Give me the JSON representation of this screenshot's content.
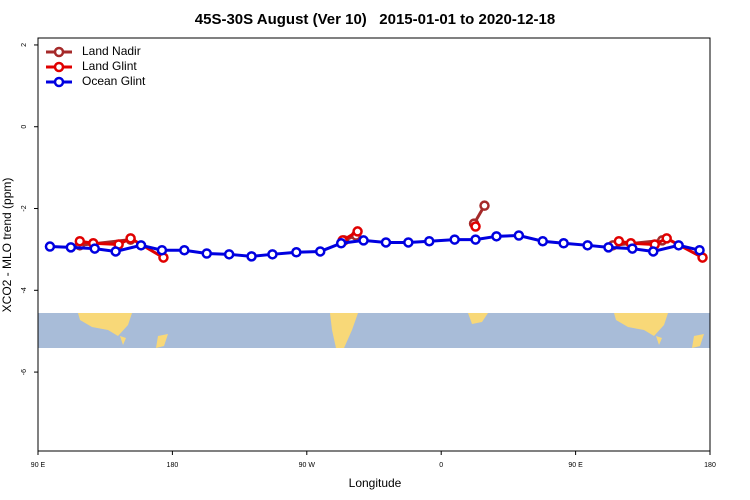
{
  "chart_data": {
    "type": "line",
    "title": "45S-30S August (Ver 10)   2015-01-01 to 2020-12-18",
    "x_label": "Longitude",
    "y_label": "XCO2 - MLO trend (ppm)",
    "xlim": [
      90,
      540
    ],
    "ylim": [
      -7.93,
      2.17
    ],
    "xticks": [
      {
        "value": 90,
        "label": "90 E"
      },
      180,
      {
        "value": 270,
        "label": "90 W"
      },
      {
        "value": 360,
        "label": "0"
      },
      {
        "value": 450,
        "label": "90 E"
      },
      {
        "value": 540,
        "label": "180"
      }
    ],
    "yticks": [
      2,
      0,
      -2,
      -4,
      -6
    ],
    "legend": "top-left",
    "series": [
      {
        "name": "Land Nadir",
        "color": "#a52a2a",
        "x": [
          118,
          152,
          null,
          295,
          303,
          null,
          382,
          389,
          null,
          475,
          508
        ],
        "values": [
          -2.9,
          -2.76,
          null,
          -2.78,
          -2.66,
          null,
          -2.37,
          -1.93,
          null,
          -2.9,
          -2.78
        ]
      },
      {
        "name": "Land Glint",
        "color": "#e00000",
        "x": [
          118,
          127,
          144,
          152,
          174,
          null,
          294,
          304,
          null,
          383,
          null,
          479,
          487,
          503,
          511,
          535
        ],
        "values": [
          -2.8,
          -2.85,
          -2.88,
          -2.73,
          -3.2,
          null,
          -2.78,
          -2.56,
          null,
          -2.44,
          null,
          -2.8,
          -2.85,
          -2.88,
          -2.73,
          -3.2
        ]
      },
      {
        "name": "Ocean Glint",
        "color": "#0000e0",
        "x": [
          98,
          112,
          128,
          142,
          159,
          173,
          188,
          203,
          218,
          233,
          247,
          263,
          279,
          293,
          308,
          323,
          338,
          352,
          369,
          383,
          397,
          412,
          428,
          442,
          458,
          472,
          488,
          502,
          519,
          533
        ],
        "values": [
          -2.93,
          -2.95,
          -2.98,
          -3.05,
          -2.9,
          -3.02,
          -3.02,
          -3.1,
          -3.12,
          -3.17,
          -3.12,
          -3.07,
          -3.05,
          -2.85,
          -2.78,
          -2.83,
          -2.83,
          -2.8,
          -2.76,
          -2.76,
          -2.68,
          -2.66,
          -2.8,
          -2.85,
          -2.9,
          -2.95,
          -2.98,
          -3.05,
          -2.9,
          -3.02
        ]
      }
    ]
  }
}
